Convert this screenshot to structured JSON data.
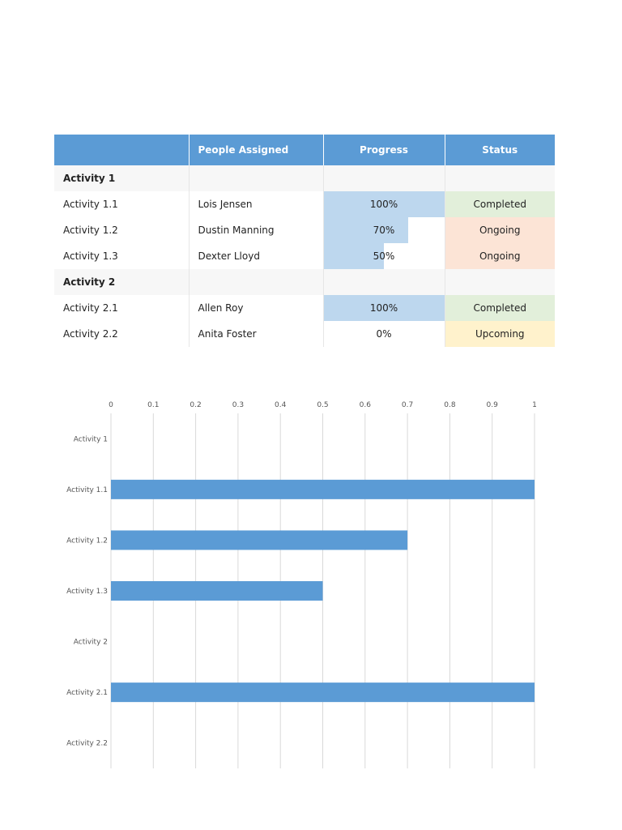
{
  "table": {
    "headers": [
      "",
      "People Assigned",
      "Progress",
      "Status"
    ],
    "groups": [
      {
        "name": "Activity 1",
        "rows": [
          {
            "name": "Activity 1.1",
            "person": "Lois Jensen",
            "progress": 1.0,
            "progress_label": "100%",
            "status": "Completed"
          },
          {
            "name": "Activity 1.2",
            "person": "Dustin Manning",
            "progress": 0.7,
            "progress_label": "70%",
            "status": "Ongoing"
          },
          {
            "name": "Activity 1.3",
            "person": "Dexter Lloyd",
            "progress": 0.5,
            "progress_label": "50%",
            "status": "Ongoing"
          }
        ]
      },
      {
        "name": "Activity 2",
        "rows": [
          {
            "name": "Activity 2.1",
            "person": "Allen Roy",
            "progress": 1.0,
            "progress_label": "100%",
            "status": "Completed"
          },
          {
            "name": "Activity 2.2",
            "person": "Anita Foster",
            "progress": 0,
            "progress_label": "0%",
            "status": "Upcoming"
          }
        ]
      }
    ],
    "status_colors": {
      "Completed": "#e2efda",
      "Ongoing": "#fce4d6",
      "Upcoming": "#fff2cc"
    },
    "header_color": "#5b9bd5",
    "progress_fill_color": "#bdd7ee"
  },
  "chart_data": {
    "type": "bar",
    "orientation": "horizontal",
    "categories": [
      "Activity 1",
      "Activity 1.1",
      "Activity 1.2",
      "Activity 1.3",
      "Activity 2",
      "Activity 2.1",
      "Activity 2.2"
    ],
    "values": [
      null,
      1.0,
      0.7,
      0.5,
      null,
      1.0,
      0
    ],
    "xlim": [
      0,
      1
    ],
    "xticks": [
      "0",
      "0.1",
      "0.2",
      "0.3",
      "0.4",
      "0.5",
      "0.6",
      "0.7",
      "0.8",
      "0.9",
      "1"
    ],
    "x_axis_position": "top",
    "grid": true,
    "bar_color": "#5b9bd5",
    "title": "",
    "xlabel": "",
    "ylabel": ""
  }
}
